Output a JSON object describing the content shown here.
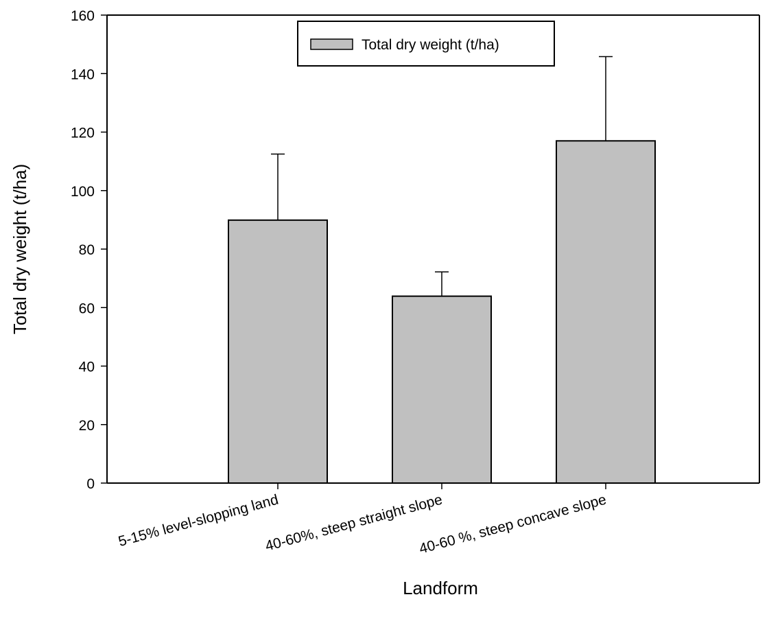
{
  "chart_data": {
    "type": "bar",
    "categories": [
      "5-15% level-slopping land",
      "40-60%, steep straight slope",
      "40-60 %, steep concave slope"
    ],
    "series": [
      {
        "name": "Total dry weight (t/ha)",
        "values": [
          89.9,
          63.9,
          117.0
        ],
        "error_plus": [
          22.6,
          8.3,
          28.8
        ],
        "color": "#c0c0c0"
      }
    ],
    "xlabel": "Landform",
    "ylabel": "Total dry weight (t/ha)",
    "ylim": [
      0,
      160
    ],
    "yticks": [
      0,
      20,
      40,
      60,
      80,
      100,
      120,
      140,
      160
    ],
    "ytick_labels": [
      "0",
      "20",
      "40",
      "60",
      "80",
      "100",
      "120",
      "140",
      "160"
    ],
    "grid": false,
    "legend_position": "top-center"
  }
}
